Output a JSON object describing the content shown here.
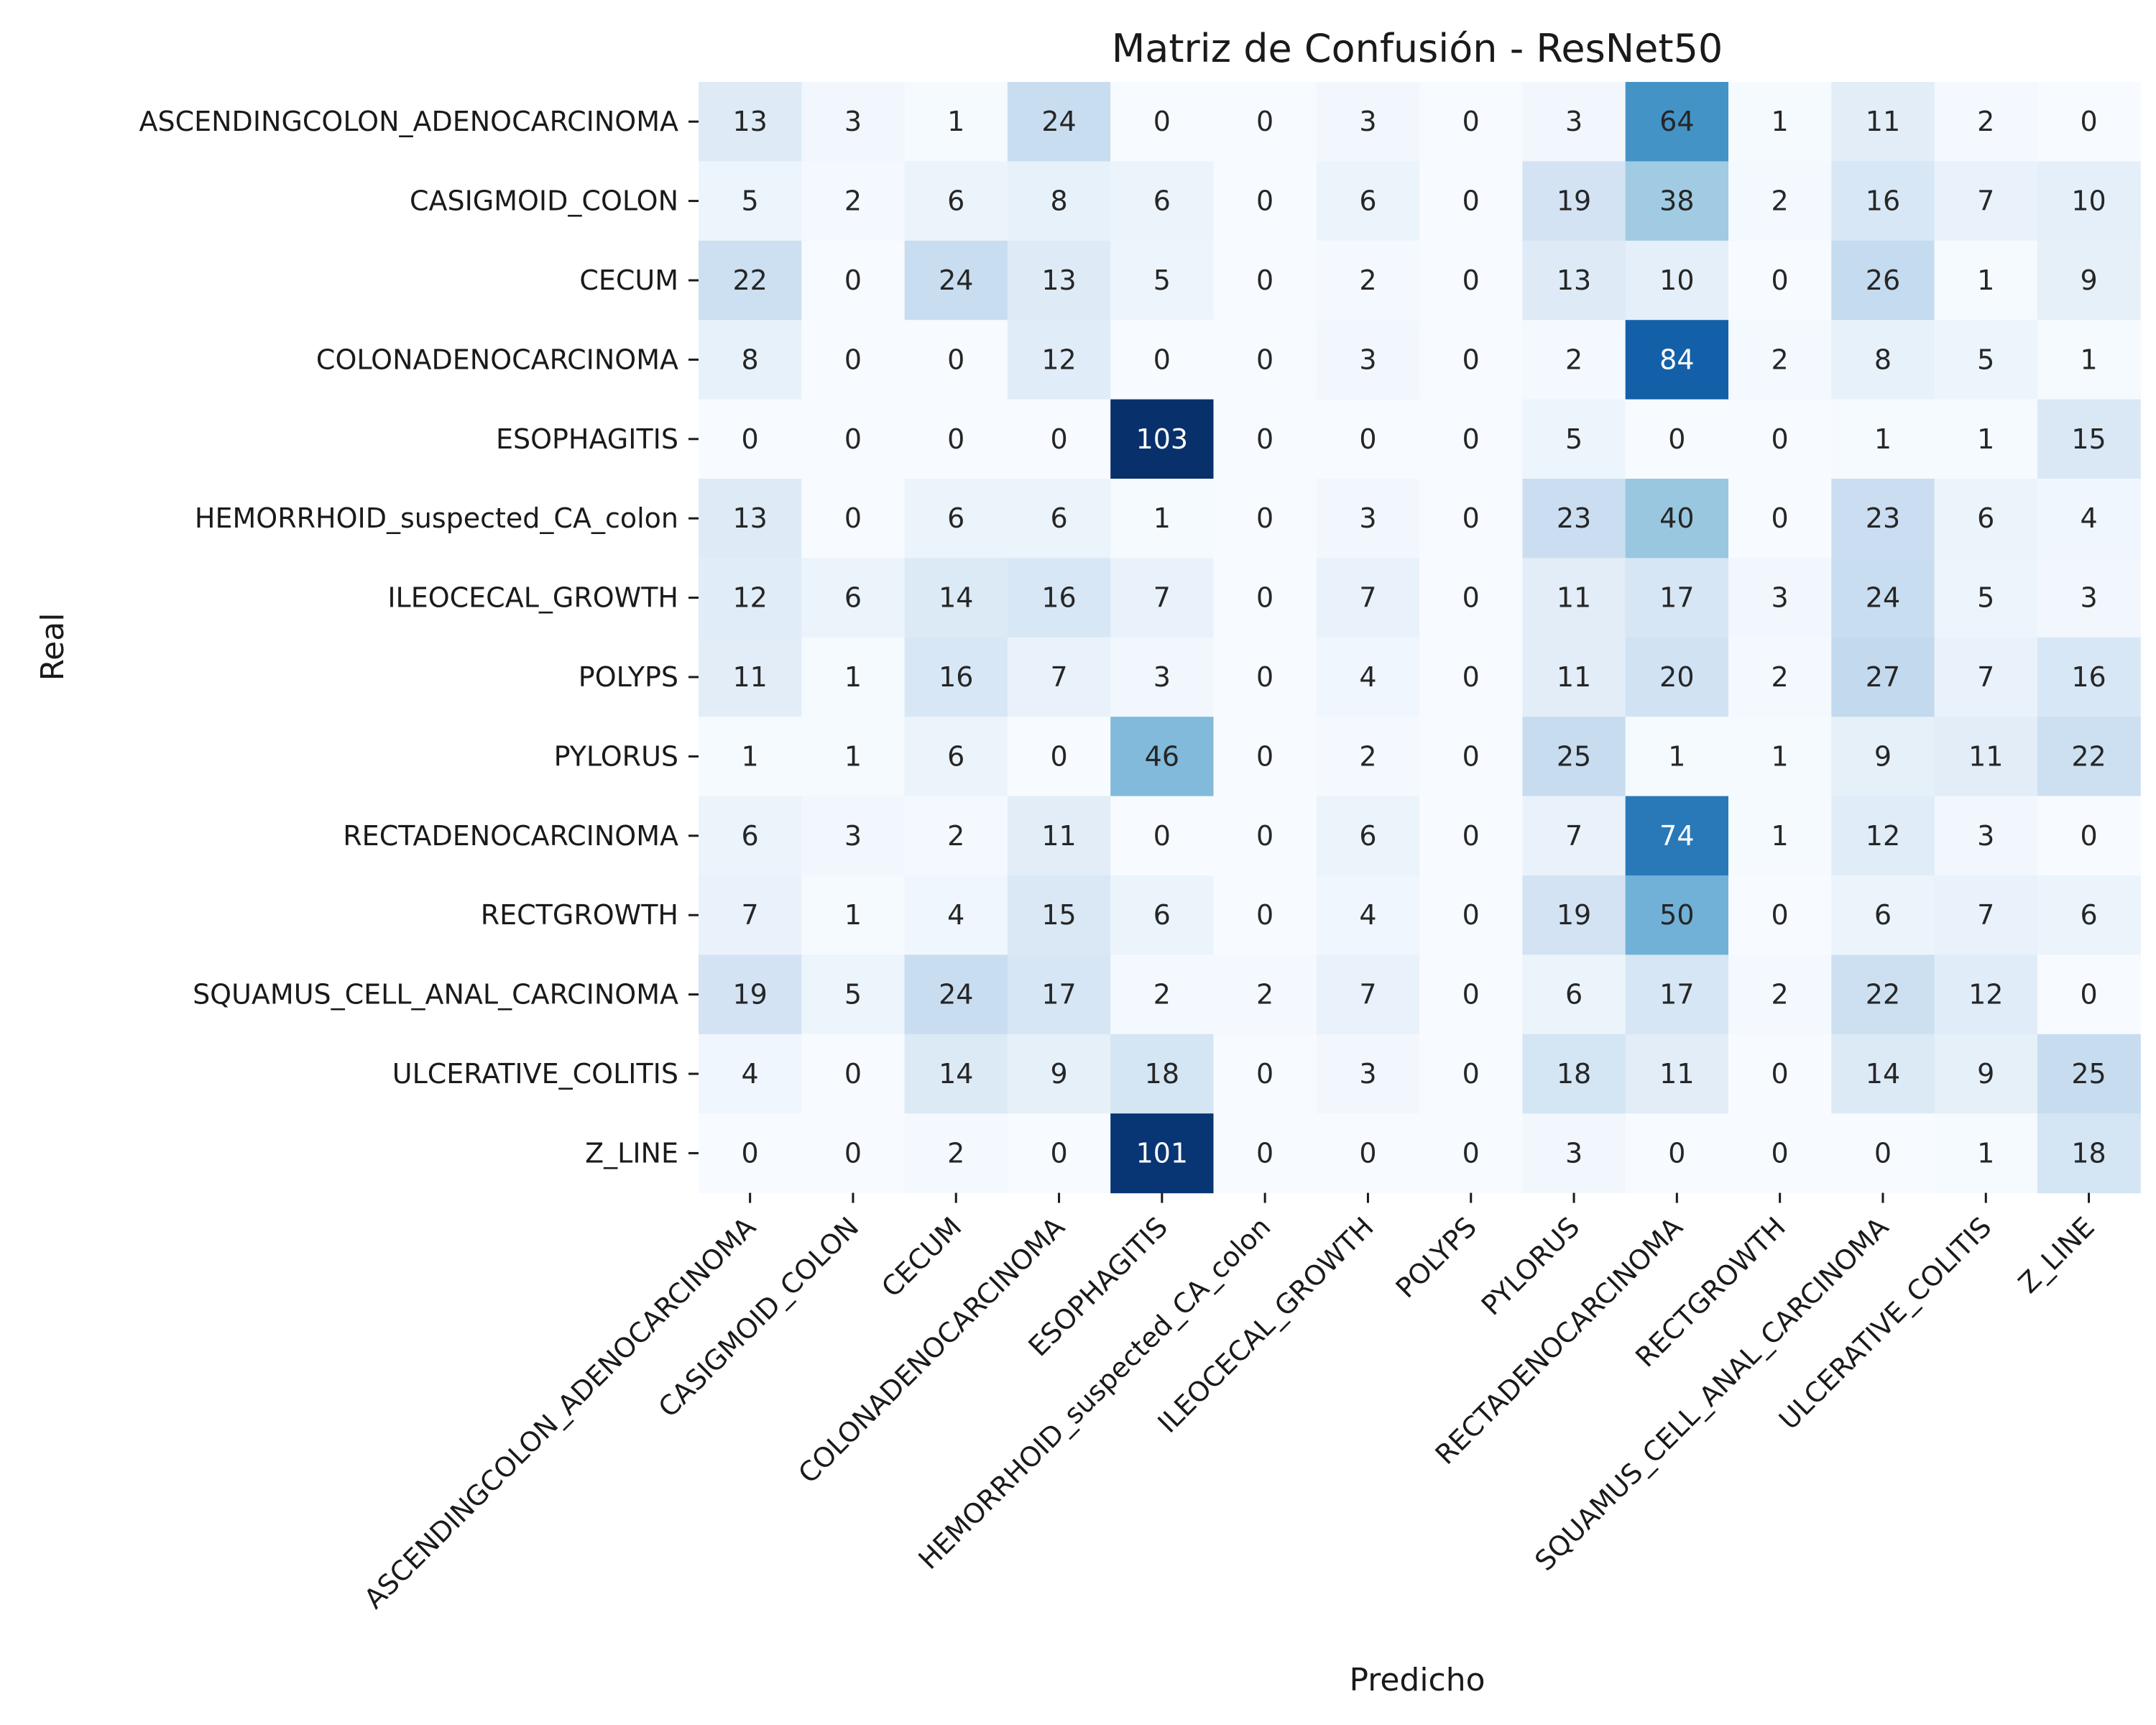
{
  "chart_data": {
    "type": "heatmap",
    "title": "Matriz de Confusión - ResNet50",
    "xlabel": "Predicho",
    "ylabel": "Real",
    "colormap": "Blues",
    "colormap_stops": [
      "#f7fbff",
      "#deebf7",
      "#c6dbef",
      "#9ecae1",
      "#6baed6",
      "#4292c6",
      "#2171b5",
      "#08519c",
      "#08306b"
    ],
    "value_range": [
      0,
      103
    ],
    "grid": false,
    "categories_x": [
      "ASCENDINGCOLON_ADENOCARCINOMA",
      "CASIGMOID_COLON",
      "CECUM",
      "COLONADENOCARCINOMA",
      "ESOPHAGITIS",
      "HEMORRHOID_suspected_CA_colon",
      "ILEOCECAL_GROWTH",
      "POLYPS",
      "PYLORUS",
      "RECTADENOCARCINOMA",
      "RECTGROWTH",
      "SQUAMUS_CELL_ANAL_CARCINOMA",
      "ULCERATIVE_COLITIS",
      "Z_LINE"
    ],
    "categories_y": [
      "ASCENDINGCOLON_ADENOCARCINOMA",
      "CASIGMOID_COLON",
      "CECUM",
      "COLONADENOCARCINOMA",
      "ESOPHAGITIS",
      "HEMORRHOID_suspected_CA_colon",
      "ILEOCECAL_GROWTH",
      "POLYPS",
      "PYLORUS",
      "RECTADENOCARCINOMA",
      "RECTGROWTH",
      "SQUAMUS_CELL_ANAL_CARCINOMA",
      "ULCERATIVE_COLITIS",
      "Z_LINE"
    ],
    "values": [
      [
        13,
        3,
        1,
        24,
        0,
        0,
        3,
        0,
        3,
        64,
        1,
        11,
        2,
        0
      ],
      [
        5,
        2,
        6,
        8,
        6,
        0,
        6,
        0,
        19,
        38,
        2,
        16,
        7,
        10
      ],
      [
        22,
        0,
        24,
        13,
        5,
        0,
        2,
        0,
        13,
        10,
        0,
        26,
        1,
        9
      ],
      [
        8,
        0,
        0,
        12,
        0,
        0,
        3,
        0,
        2,
        84,
        2,
        8,
        5,
        1
      ],
      [
        0,
        0,
        0,
        0,
        103,
        0,
        0,
        0,
        5,
        0,
        0,
        1,
        1,
        15
      ],
      [
        13,
        0,
        6,
        6,
        1,
        0,
        3,
        0,
        23,
        40,
        0,
        23,
        6,
        4
      ],
      [
        12,
        6,
        14,
        16,
        7,
        0,
        7,
        0,
        11,
        17,
        3,
        24,
        5,
        3
      ],
      [
        11,
        1,
        16,
        7,
        3,
        0,
        4,
        0,
        11,
        20,
        2,
        27,
        7,
        16
      ],
      [
        1,
        1,
        6,
        0,
        46,
        0,
        2,
        0,
        25,
        1,
        1,
        9,
        11,
        22
      ],
      [
        6,
        3,
        2,
        11,
        0,
        0,
        6,
        0,
        7,
        74,
        1,
        12,
        3,
        0
      ],
      [
        7,
        1,
        4,
        15,
        6,
        0,
        4,
        0,
        19,
        50,
        0,
        6,
        7,
        6
      ],
      [
        19,
        5,
        24,
        17,
        2,
        2,
        7,
        0,
        6,
        17,
        2,
        22,
        12,
        0
      ],
      [
        4,
        0,
        14,
        9,
        18,
        0,
        3,
        0,
        18,
        11,
        0,
        14,
        9,
        25
      ],
      [
        0,
        0,
        2,
        0,
        101,
        0,
        0,
        0,
        3,
        0,
        0,
        0,
        1,
        18
      ]
    ]
  }
}
